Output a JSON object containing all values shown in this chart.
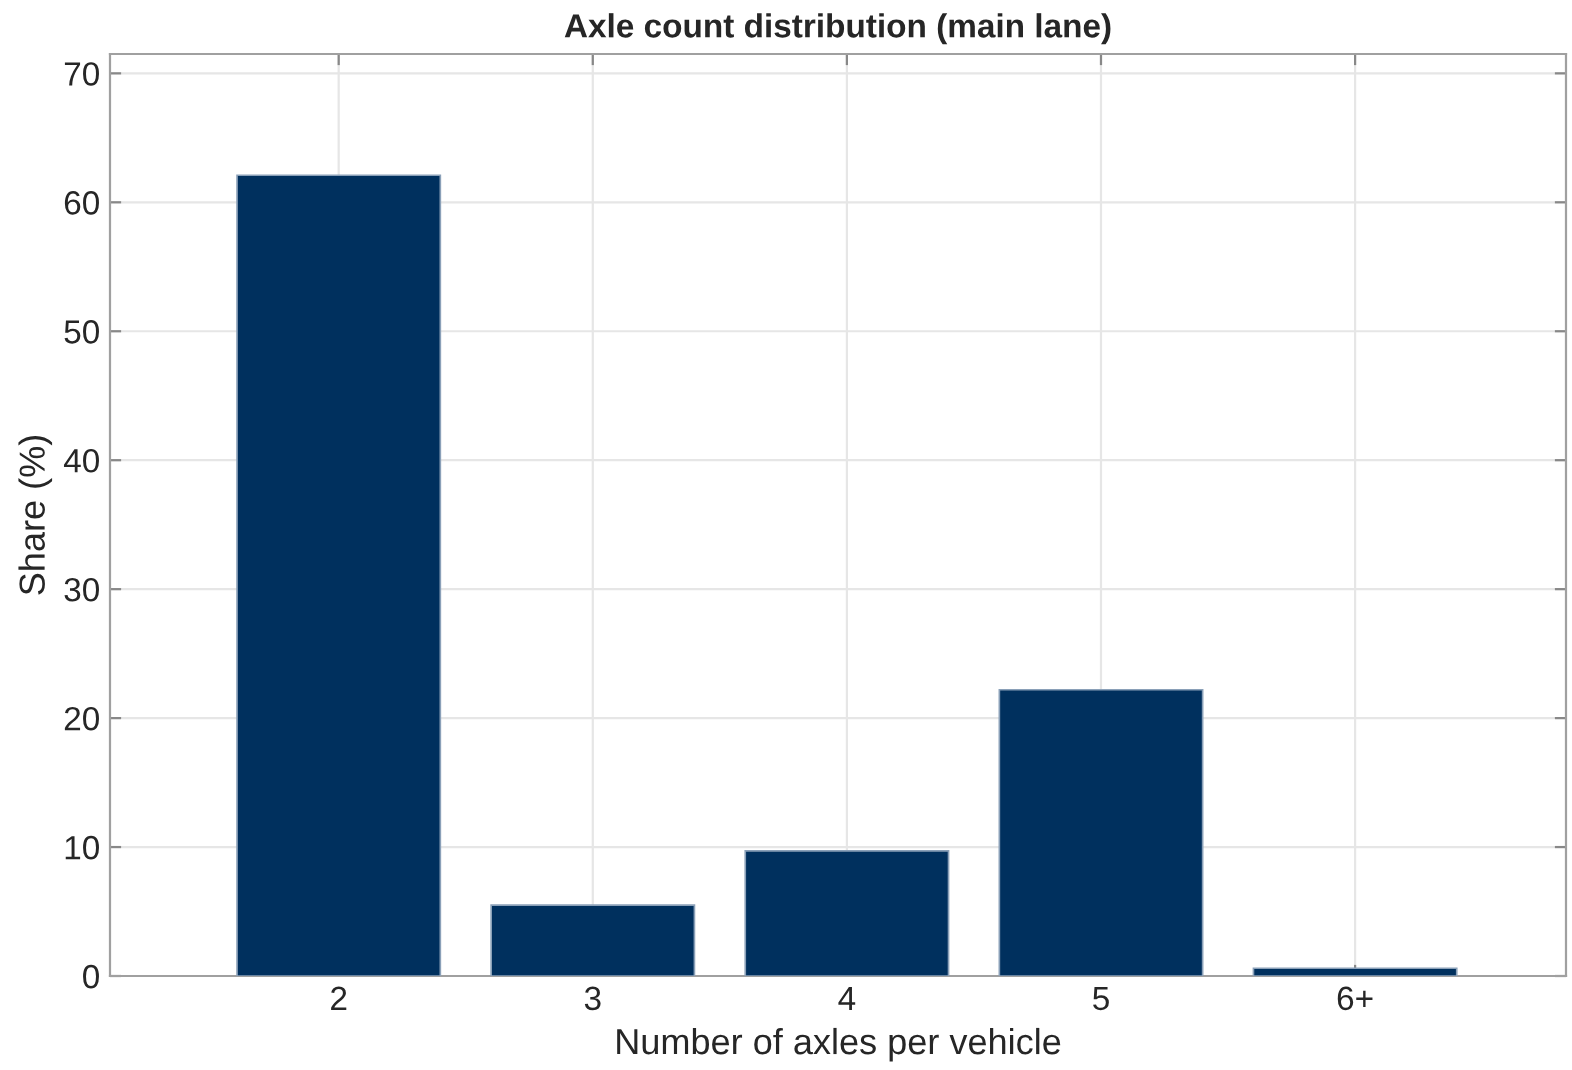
{
  "chart_data": {
    "type": "bar",
    "title": "Axle count distribution (main lane)",
    "xlabel": "Number of axles per vehicle",
    "ylabel": "Share (%)",
    "categories": [
      "2",
      "3",
      "4",
      "5",
      "6+"
    ],
    "values": [
      62.1,
      5.5,
      9.7,
      22.2,
      0.6
    ],
    "color": "#00305e",
    "ylim": [
      0,
      71.5
    ],
    "yticks": [
      0,
      10,
      20,
      30,
      40,
      50,
      60,
      70
    ],
    "grid": true
  }
}
